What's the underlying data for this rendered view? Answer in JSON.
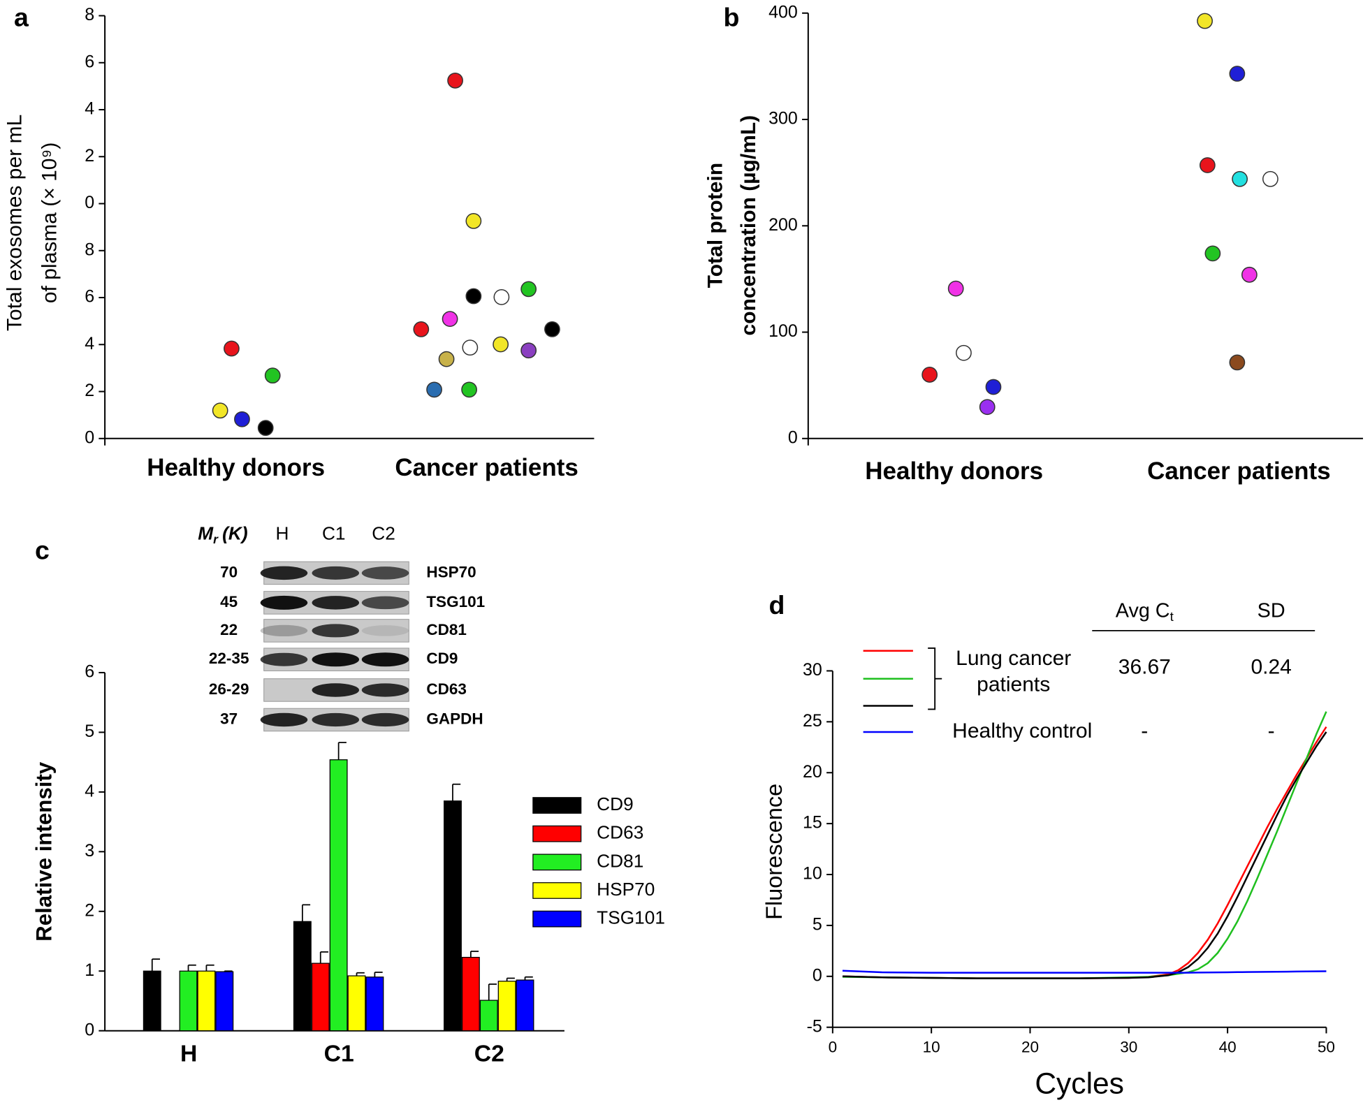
{
  "chart_data": [
    {
      "type": "strip",
      "panel": "a",
      "ylabel": [
        "Total exosomes per mL",
        "of plasma (× 10⁹)"
      ],
      "categories": [
        "Healthy donors",
        "Cancer patients"
      ],
      "values": [
        [
          3.83,
          2.68,
          1.19,
          0.82,
          0.45
        ],
        [
          15.24,
          9.26,
          6.06,
          6.02,
          6.36,
          4.65,
          5.09,
          3.87,
          4.01,
          3.38,
          3.75,
          4.65,
          2.08,
          2.08
        ]
      ],
      "colors": [
        [
          "#e8141c",
          "#22c422",
          "#f2e627",
          "#1f1fd6",
          "#000000"
        ],
        [
          "#e8141c",
          "#f2e627",
          "#000000",
          "#ffffff",
          "#22c422",
          "#e8141c",
          "#f032e6",
          "#ffffff",
          "#f2e627",
          "#c8b24a",
          "#8a3fc0",
          "#000000",
          "#2a6db0",
          "#22c422"
        ]
      ],
      "ylim": [
        0,
        18
      ],
      "yticks": [
        0,
        2,
        4,
        6,
        8,
        {
          "value": 10,
          "label": "0"
        },
        {
          "value": 12,
          "label": "2"
        },
        {
          "value": 14,
          "label": "4"
        },
        {
          "value": 16,
          "label": "6"
        },
        {
          "value": 18,
          "label": "8"
        }
      ]
    },
    {
      "type": "strip",
      "panel": "b",
      "ylabel": [
        "Total protein",
        "concentration (µg/mL)"
      ],
      "categories": [
        "Healthy donors",
        "Cancer patients"
      ],
      "values": [
        [
          141,
          80.5,
          60,
          48.5,
          29.6
        ],
        [
          392.6,
          343,
          257,
          244,
          244,
          174,
          154,
          71.5
        ]
      ],
      "colors": [
        [
          "#f032e6",
          "#ffffff",
          "#e8141c",
          "#1f1fd6",
          "#9a2ff0"
        ],
        [
          "#f2e627",
          "#1f1fd6",
          "#e8141c",
          "#22e0e0",
          "#ffffff",
          "#22c422",
          "#f032e6",
          "#8b4a1e"
        ]
      ],
      "ylim": [
        0,
        400
      ],
      "yticks": [
        0,
        100,
        200,
        300,
        400
      ]
    },
    {
      "type": "bar",
      "panel": "c",
      "ylabel": "Relative intensity",
      "categories": [
        "H",
        "C1",
        "C2"
      ],
      "series": [
        {
          "name": "CD9",
          "color": "#000000",
          "values": [
            1.0,
            1.83,
            3.85
          ],
          "errors": [
            0.2,
            0.28,
            0.28
          ]
        },
        {
          "name": "CD63",
          "color": "#ff0000",
          "values": [
            null,
            1.13,
            1.23
          ],
          "errors": [
            null,
            0.19,
            0.1
          ]
        },
        {
          "name": "CD81",
          "color": "#22ee22",
          "values": [
            1.0,
            4.54,
            0.51
          ],
          "errors": [
            0.1,
            0.29,
            0.27
          ]
        },
        {
          "name": "HSP70",
          "color": "#ffff00",
          "values": [
            1.0,
            0.92,
            0.83
          ],
          "errors": [
            0.1,
            0.05,
            0.05
          ]
        },
        {
          "name": "TSG101",
          "color": "#0000ff",
          "values": [
            0.99,
            0.9,
            0.85
          ],
          "errors": [
            0.01,
            0.08,
            0.05
          ]
        }
      ],
      "ylim": [
        0,
        6
      ],
      "yticks": [
        0,
        1,
        2,
        3,
        4,
        5,
        6
      ]
    },
    {
      "type": "line",
      "panel": "d",
      "xlabel": "Cycles",
      "ylabel": "Fluorescence",
      "x": [
        1,
        5,
        10,
        15,
        20,
        25,
        30,
        32,
        34,
        35,
        36,
        37,
        38,
        39,
        40,
        41,
        42,
        43,
        44,
        45,
        46,
        47,
        48,
        49,
        50
      ],
      "series": [
        {
          "color": "#ff0000",
          "values": [
            0,
            -0.1,
            -0.15,
            -0.2,
            -0.2,
            -0.2,
            -0.15,
            -0.05,
            0.2,
            0.6,
            1.3,
            2.3,
            3.6,
            5.2,
            7.0,
            8.9,
            10.8,
            12.7,
            14.6,
            16.4,
            18.1,
            19.8,
            21.4,
            23.0,
            24.5
          ]
        },
        {
          "color": "#1fbf1f",
          "values": [
            -0.05,
            -0.1,
            -0.15,
            -0.2,
            -0.2,
            -0.2,
            -0.1,
            -0.05,
            0.1,
            0.25,
            0.4,
            0.7,
            1.3,
            2.3,
            3.7,
            5.4,
            7.4,
            9.6,
            11.9,
            14.2,
            16.6,
            19.0,
            21.4,
            23.8,
            26.0
          ]
        },
        {
          "color": "#000000",
          "values": [
            0,
            -0.1,
            -0.15,
            -0.2,
            -0.2,
            -0.2,
            -0.15,
            -0.1,
            0.1,
            0.4,
            0.9,
            1.7,
            2.8,
            4.2,
            5.9,
            7.8,
            9.8,
            11.8,
            13.8,
            15.8,
            17.7,
            19.4,
            21.0,
            22.6,
            24.0
          ]
        },
        {
          "color": "#0000ff",
          "values": [
            0.55,
            0.4,
            0.35,
            0.35,
            0.35,
            0.35,
            0.35,
            0.35,
            0.35,
            0.35,
            0.35,
            0.37,
            0.38,
            0.39,
            0.4,
            0.41,
            0.42,
            0.43,
            0.44,
            0.45,
            0.46,
            0.47,
            0.48,
            0.49,
            0.5
          ]
        }
      ],
      "xlim": [
        0,
        50
      ],
      "xticks": [
        0,
        10,
        20,
        30,
        40,
        50
      ],
      "ylim": [
        -5,
        30
      ],
      "yticks": [
        -5,
        0,
        5,
        10,
        15,
        20,
        25,
        30
      ],
      "table": {
        "columns": [
          {
            "text": "Avg C",
            "sub": "t"
          },
          {
            "text": "SD"
          }
        ],
        "rows": [
          {
            "label": [
              "Lung cancer",
              "patients"
            ],
            "avg": 36.67,
            "sd": 0.24
          },
          {
            "label": [
              "Healthy control"
            ],
            "avg": "-",
            "sd": "-"
          }
        ]
      }
    }
  ],
  "blot": {
    "mass_header": {
      "text": "M",
      "sub": "r",
      "suffix": "(K)"
    },
    "lanes": [
      "H",
      "C1",
      "C2"
    ],
    "rows": [
      {
        "mass": "70",
        "protein": "HSP70"
      },
      {
        "mass": "45",
        "protein": "TSG101"
      },
      {
        "mass": "22",
        "protein": "CD81"
      },
      {
        "mass": "22-35",
        "protein": "CD9"
      },
      {
        "mass": "26-29",
        "protein": "CD63"
      },
      {
        "mass": "37",
        "protein": "GAPDH"
      }
    ]
  }
}
